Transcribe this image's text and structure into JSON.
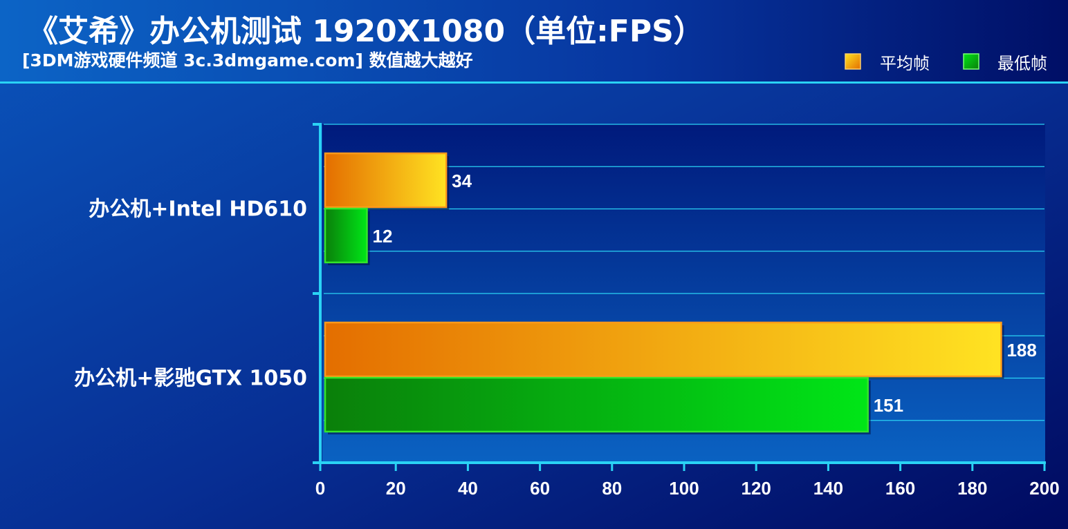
{
  "chart_data": {
    "type": "bar",
    "orientation": "horizontal",
    "title": "《艾希》办公机测试 1920X1080（单位:FPS）",
    "subtitle": "[3DM游戏硬件频道 3c.3dmgame.com] 数值越大越好",
    "categories": [
      "办公机+Intel HD610",
      "办公机+影驰GTX 1050"
    ],
    "series": [
      {
        "name": "平均帧",
        "values": [
          34,
          188
        ],
        "color": "#f5a10a"
      },
      {
        "name": "最低帧",
        "values": [
          12,
          151
        ],
        "color": "#19c40f"
      }
    ],
    "xlim": [
      0,
      200
    ],
    "xticks": [
      0,
      20,
      40,
      60,
      80,
      100,
      120,
      140,
      160,
      180,
      200
    ],
    "xlabel": "",
    "ylabel": "",
    "grid": true,
    "legend_position": "top-right"
  },
  "colors": {
    "background_top": "#0a4fb4",
    "background_bottom": "#00126a",
    "axis": "#2ad3f5",
    "avg_dark": "#e46e00",
    "avg_light": "#ffe322",
    "min_dark": "#0a7f0a",
    "min_light": "#00e617"
  }
}
